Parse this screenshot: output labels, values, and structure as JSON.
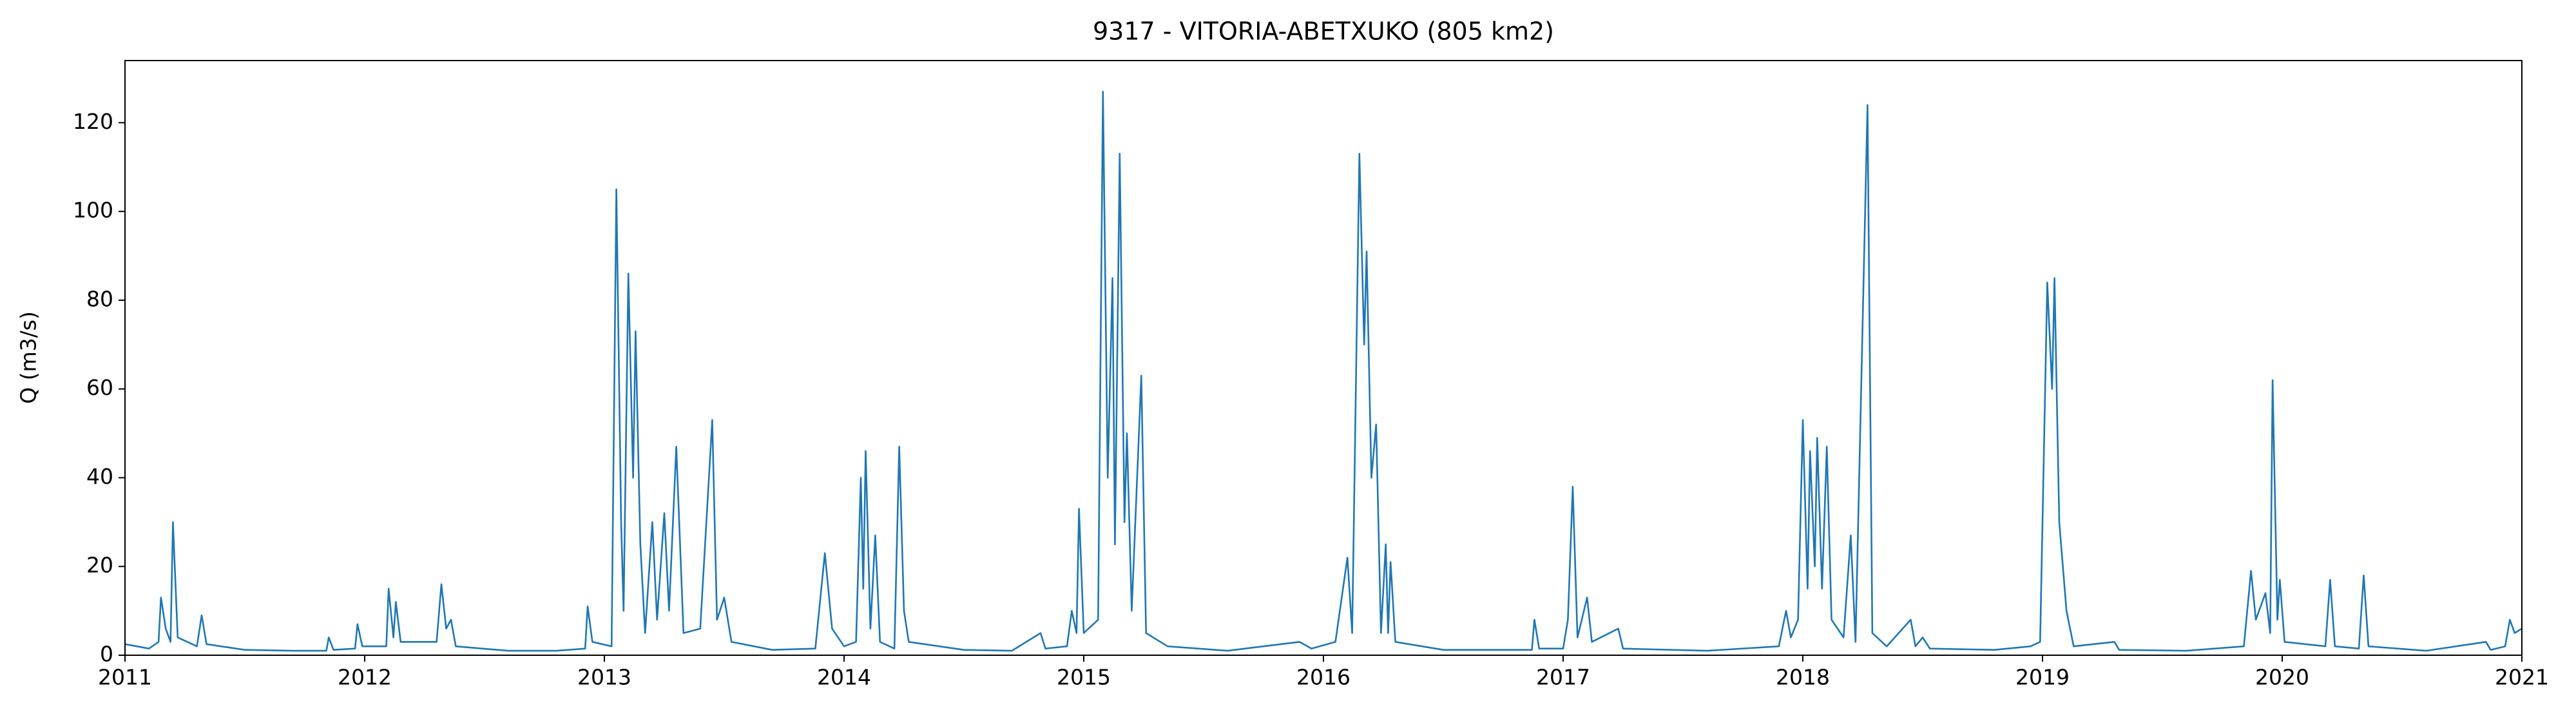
{
  "chart_data": {
    "type": "line",
    "title": "9317 - VITORIA-ABETXUKO (805 km2)",
    "y_label": "Q (m3/s)",
    "xlim": [
      2011,
      2021
    ],
    "xticks": [
      2011,
      2012,
      2013,
      2014,
      2015,
      2016,
      2017,
      2018,
      2019,
      2020,
      2021
    ],
    "ylim": [
      0,
      134
    ],
    "yticks": [
      0,
      20,
      40,
      60,
      80,
      100,
      120
    ],
    "grid": false,
    "x": [
      2011.0,
      2011.1,
      2011.14,
      2011.15,
      2011.17,
      2011.19,
      2011.2,
      2011.22,
      2011.3,
      2011.32,
      2011.34,
      2011.5,
      2011.7,
      2011.84,
      2011.85,
      2011.87,
      2011.96,
      2011.97,
      2011.99,
      2012.09,
      2012.1,
      2012.12,
      2012.13,
      2012.15,
      2012.3,
      2012.32,
      2012.34,
      2012.36,
      2012.38,
      2012.6,
      2012.8,
      2012.92,
      2012.93,
      2012.95,
      2013.03,
      2013.05,
      2013.07,
      2013.08,
      2013.1,
      2013.12,
      2013.13,
      2013.15,
      2013.17,
      2013.2,
      2013.22,
      2013.25,
      2013.27,
      2013.3,
      2013.33,
      2013.4,
      2013.45,
      2013.47,
      2013.5,
      2013.53,
      2013.7,
      2013.88,
      2013.92,
      2013.95,
      2014.0,
      2014.05,
      2014.07,
      2014.08,
      2014.09,
      2014.11,
      2014.13,
      2014.15,
      2014.21,
      2014.23,
      2014.25,
      2014.27,
      2014.5,
      2014.7,
      2014.82,
      2014.84,
      2014.93,
      2014.95,
      2014.97,
      2014.98,
      2015.0,
      2015.06,
      2015.08,
      2015.1,
      2015.12,
      2015.13,
      2015.15,
      2015.17,
      2015.18,
      2015.2,
      2015.24,
      2015.26,
      2015.35,
      2015.6,
      2015.9,
      2015.95,
      2016.05,
      2016.1,
      2016.12,
      2016.15,
      2016.17,
      2016.18,
      2016.2,
      2016.22,
      2016.24,
      2016.26,
      2016.27,
      2016.28,
      2016.3,
      2016.5,
      2016.87,
      2016.88,
      2016.9,
      2017.0,
      2017.02,
      2017.04,
      2017.06,
      2017.1,
      2017.12,
      2017.23,
      2017.25,
      2017.6,
      2017.9,
      2017.93,
      2017.95,
      2017.98,
      2018.0,
      2018.02,
      2018.03,
      2018.05,
      2018.06,
      2018.08,
      2018.1,
      2018.12,
      2018.17,
      2018.2,
      2018.22,
      2018.27,
      2018.29,
      2018.35,
      2018.45,
      2018.47,
      2018.5,
      2018.53,
      2018.8,
      2018.95,
      2018.99,
      2019.02,
      2019.04,
      2019.05,
      2019.07,
      2019.1,
      2019.13,
      2019.3,
      2019.32,
      2019.6,
      2019.84,
      2019.87,
      2019.89,
      2019.93,
      2019.95,
      2019.96,
      2019.98,
      2019.99,
      2020.01,
      2020.18,
      2020.2,
      2020.22,
      2020.32,
      2020.34,
      2020.36,
      2020.6,
      2020.85,
      2020.87,
      2020.93,
      2020.95,
      2020.97,
      2021.0
    ],
    "series": [
      {
        "name": "Q",
        "color": "#1f77b4",
        "values": [
          2.5,
          1.5,
          3,
          13,
          6,
          3,
          30,
          4,
          2,
          9,
          2.5,
          1.2,
          1,
          1,
          4,
          1.2,
          1.5,
          7,
          2,
          2,
          15,
          4,
          12,
          3,
          3,
          16,
          6,
          8,
          2,
          1,
          1,
          1.5,
          11,
          3,
          2,
          105,
          30,
          10,
          86,
          40,
          73,
          25,
          5,
          30,
          8,
          32,
          10,
          47,
          5,
          6,
          53,
          8,
          13,
          3,
          1.2,
          1.5,
          23,
          6,
          2,
          3,
          40,
          15,
          46,
          6,
          27,
          3,
          1.5,
          47,
          10,
          3,
          1.2,
          1,
          5,
          1.5,
          2,
          10,
          5,
          33,
          5,
          8,
          127,
          40,
          85,
          25,
          113,
          30,
          50,
          10,
          63,
          5,
          2,
          1,
          3,
          1.5,
          3,
          22,
          5,
          113,
          70,
          91,
          40,
          52,
          5,
          25,
          5,
          21,
          3,
          1.2,
          1.2,
          8,
          1.5,
          1.5,
          8,
          38,
          4,
          13,
          3,
          6,
          1.5,
          1,
          2,
          10,
          4,
          8,
          53,
          15,
          46,
          20,
          49,
          15,
          47,
          8,
          4,
          27,
          3,
          124,
          5,
          2,
          8,
          2,
          4,
          1.5,
          1.2,
          2,
          3,
          84,
          60,
          85,
          30,
          10,
          2,
          3,
          1.2,
          1,
          2,
          19,
          8,
          14,
          5,
          62,
          8,
          17,
          3,
          2,
          17,
          2,
          1.5,
          18,
          2,
          1,
          3,
          1.2,
          2,
          8,
          5,
          6
        ]
      }
    ]
  }
}
